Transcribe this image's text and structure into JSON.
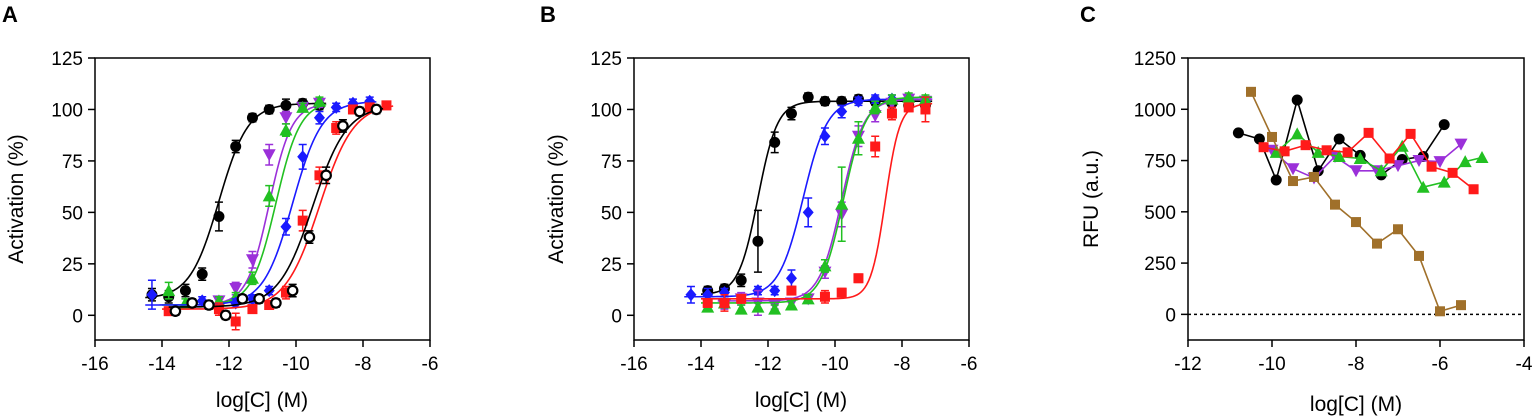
{
  "figure": {
    "panel_labels": [
      "A",
      "B",
      "C"
    ],
    "panel_A": {
      "xlabel": "log[C] (M)",
      "ylabel": "Activation (%)"
    },
    "panel_B": {
      "xlabel": "log[C] (M)",
      "ylabel": "Activation (%)"
    },
    "panel_C": {
      "xlabel": "log[C] (M)",
      "ylabel": "RFU (a.u.)"
    }
  },
  "chart_data": [
    {
      "panel": "A",
      "type": "scatter",
      "fit": "sigmoid",
      "xlabel": "log[C] (M)",
      "ylabel": "Activation (%)",
      "xlim": [
        -16,
        -6
      ],
      "ylim": [
        -12,
        125
      ],
      "xticks": [
        "-16",
        "-14",
        "-12",
        "-10",
        "-8",
        "-6"
      ],
      "xtick_values": [
        -16,
        -14,
        -12,
        -10,
        -8,
        -6
      ],
      "yticks": [
        "0",
        "25",
        "50",
        "75",
        "100",
        "125"
      ],
      "ytick_values": [
        0,
        25,
        50,
        75,
        100,
        125
      ],
      "grid": false,
      "series": [
        {
          "name": "black filled circle",
          "color": "#000000",
          "marker": "circle",
          "fit": {
            "bottom": 8,
            "top": 103,
            "ec50": -12.3,
            "hill": 1.0
          },
          "x": [
            -14.3,
            -13.8,
            -13.3,
            -12.8,
            -12.3,
            -11.8,
            -11.3,
            -10.8,
            -10.3,
            -9.8,
            -9.3
          ],
          "y": [
            10,
            9,
            12,
            20,
            48,
            82,
            96,
            100,
            102,
            103,
            102
          ],
          "err": [
            3,
            3,
            3,
            3,
            7,
            3,
            2,
            2,
            3,
            2,
            2
          ]
        },
        {
          "name": "magenta triangle",
          "color": "#9b30d9",
          "marker": "triangle-down",
          "fit": {
            "bottom": 5,
            "top": 103,
            "ec50": -10.8,
            "hill": 1.3
          },
          "x": [
            -12.3,
            -11.8,
            -11.3,
            -10.8,
            -10.3,
            -9.8,
            -9.3
          ],
          "y": [
            7,
            13,
            27,
            78,
            96,
            101,
            103
          ],
          "err": [
            2,
            3,
            4,
            5,
            3,
            2,
            2
          ]
        },
        {
          "name": "green triangle",
          "color": "#22c022",
          "marker": "triangle-up",
          "fit": {
            "bottom": 5,
            "top": 104,
            "ec50": -10.6,
            "hill": 1.2
          },
          "x": [
            -13.8,
            -13.3,
            -12.3,
            -11.8,
            -11.3,
            -10.8,
            -10.3,
            -9.8,
            -9.3
          ],
          "y": [
            12,
            6,
            7,
            9,
            18,
            58,
            90,
            101,
            104
          ],
          "err": [
            4,
            2,
            2,
            2,
            3,
            5,
            3,
            2,
            2
          ]
        },
        {
          "name": "blue diamond",
          "color": "#1a1aff",
          "marker": "diamond",
          "fit": {
            "bottom": 5,
            "top": 104,
            "ec50": -10.1,
            "hill": 1.0
          },
          "x": [
            -14.3,
            -12.8,
            -11.8,
            -11.3,
            -10.8,
            -10.3,
            -9.8,
            -9.3,
            -8.8,
            -8.3,
            -7.8
          ],
          "y": [
            10,
            7,
            6,
            8,
            12,
            43,
            77,
            96,
            101,
            103,
            104
          ],
          "err": [
            7,
            2,
            2,
            2,
            2,
            4,
            6,
            3,
            2,
            2,
            2
          ]
        },
        {
          "name": "red square",
          "color": "#ff1a1a",
          "marker": "square",
          "fit": {
            "bottom": 3,
            "top": 103,
            "ec50": -9.3,
            "hill": 0.85
          },
          "x": [
            -13.8,
            -12.3,
            -11.8,
            -11.3,
            -10.8,
            -10.3,
            -9.8,
            -9.3,
            -8.8,
            -8.3,
            -7.8,
            -7.3
          ],
          "y": [
            2,
            3,
            -3,
            3,
            5,
            11,
            46,
            68,
            91,
            100,
            101,
            102
          ],
          "err": [
            2,
            3,
            4,
            2,
            2,
            3,
            5,
            4,
            3,
            2,
            2,
            2
          ]
        },
        {
          "name": "black open circle",
          "color": "#000000",
          "marker": "open-circle",
          "fit": {
            "bottom": 4,
            "top": 102,
            "ec50": -9.5,
            "hill": 0.85
          },
          "x": [
            -13.6,
            -13.1,
            -12.6,
            -12.1,
            -11.6,
            -11.1,
            -10.6,
            -10.1,
            -9.6,
            -9.1,
            -8.6,
            -8.1,
            -7.6
          ],
          "y": [
            2,
            6,
            5,
            0,
            8,
            8,
            6,
            12,
            38,
            68,
            92,
            99,
            100
          ],
          "err": [
            2,
            2,
            2,
            2,
            2,
            2,
            2,
            3,
            3,
            4,
            3,
            2,
            2
          ]
        }
      ]
    },
    {
      "panel": "B",
      "type": "scatter",
      "fit": "sigmoid",
      "xlabel": "log[C] (M)",
      "ylabel": "Activation (%)",
      "xlim": [
        -16,
        -6
      ],
      "ylim": [
        -12,
        125
      ],
      "xticks": [
        "-16",
        "-14",
        "-12",
        "-10",
        "-8",
        "-6"
      ],
      "xtick_values": [
        -16,
        -14,
        -12,
        -10,
        -8,
        -6
      ],
      "yticks": [
        "0",
        "25",
        "50",
        "75",
        "100",
        "125"
      ],
      "ytick_values": [
        0,
        25,
        50,
        75,
        100,
        125
      ],
      "grid": false,
      "series": [
        {
          "name": "black filled circle",
          "color": "#000000",
          "marker": "circle",
          "fit": {
            "bottom": 10,
            "top": 104,
            "ec50": -12.3,
            "hill": 1.5
          },
          "x": [
            -13.8,
            -13.3,
            -12.8,
            -12.3,
            -11.8,
            -11.3,
            -10.8,
            -10.3,
            -9.8,
            -9.3,
            -8.8,
            -8.3,
            -7.8,
            -7.3
          ],
          "y": [
            12,
            13,
            17,
            36,
            84,
            98,
            106,
            104,
            104,
            105,
            104,
            103,
            102,
            102
          ],
          "err": [
            2,
            2,
            3,
            15,
            5,
            3,
            2,
            2,
            2,
            2,
            2,
            2,
            2,
            2
          ]
        },
        {
          "name": "blue diamond",
          "color": "#1a1aff",
          "marker": "diamond",
          "fit": {
            "bottom": 9,
            "top": 105,
            "ec50": -10.95,
            "hill": 1.2
          },
          "x": [
            -14.3,
            -13.8,
            -13.3,
            -12.3,
            -11.8,
            -11.3,
            -10.8,
            -10.3,
            -9.8,
            -9.3,
            -8.8,
            -8.3,
            -7.8,
            -7.3
          ],
          "y": [
            10,
            10,
            11,
            12,
            12,
            18,
            50,
            87,
            99,
            104,
            105,
            105,
            105,
            104
          ],
          "err": [
            4,
            3,
            2,
            2,
            2,
            4,
            7,
            4,
            3,
            2,
            2,
            2,
            2,
            2
          ]
        },
        {
          "name": "magenta triangle",
          "color": "#9b30d9",
          "marker": "triangle-down",
          "fit": {
            "bottom": 7,
            "top": 105,
            "ec50": -9.8,
            "hill": 1.3
          },
          "x": [
            -13.3,
            -12.8,
            -12.3,
            -11.8,
            -11.3,
            -10.8,
            -10.3,
            -9.8,
            -9.3,
            -8.8,
            -8.3,
            -7.8,
            -7.3
          ],
          "y": [
            5,
            8,
            6,
            5,
            6,
            8,
            21,
            49,
            87,
            97,
            103,
            105,
            104
          ],
          "err": [
            2,
            3,
            6,
            2,
            2,
            2,
            3,
            6,
            5,
            3,
            2,
            2,
            2
          ]
        },
        {
          "name": "green triangle",
          "color": "#22c022",
          "marker": "triangle-up",
          "fit": {
            "bottom": 6,
            "top": 106,
            "ec50": -9.75,
            "hill": 1.3
          },
          "x": [
            -13.8,
            -13.3,
            -12.8,
            -12.3,
            -11.8,
            -11.3,
            -10.8,
            -10.3,
            -9.8,
            -9.3,
            -8.8,
            -8.3,
            -7.8,
            -7.3
          ],
          "y": [
            4,
            6,
            3,
            4,
            3,
            5,
            8,
            24,
            54,
            86,
            101,
            105,
            106,
            105
          ],
          "err": [
            2,
            2,
            2,
            2,
            2,
            2,
            2,
            3,
            18,
            8,
            3,
            2,
            2,
            2
          ]
        },
        {
          "name": "red square",
          "color": "#ff1a1a",
          "marker": "square",
          "fit": {
            "bottom": 8,
            "top": 103,
            "ec50": -8.5,
            "hill": 2.0
          },
          "x": [
            -13.8,
            -13.3,
            -12.8,
            -11.3,
            -10.3,
            -9.8,
            -9.3,
            -8.8,
            -8.3,
            -7.8,
            -7.3
          ],
          "y": [
            6,
            6,
            8,
            12,
            9,
            11,
            18,
            82,
            98,
            101,
            100
          ],
          "err": [
            2,
            4,
            2,
            2,
            3,
            2,
            2,
            5,
            3,
            2,
            6
          ]
        }
      ]
    },
    {
      "panel": "C",
      "type": "line",
      "xlabel": "log[C] (M)",
      "ylabel": "RFU (a.u.)",
      "xlim": [
        -12,
        -4
      ],
      "ylim": [
        -125,
        1250
      ],
      "xticks": [
        "-12",
        "-10",
        "-8",
        "-6",
        "-4"
      ],
      "xtick_values": [
        -12,
        -10,
        -8,
        -6,
        -4
      ],
      "yticks": [
        "0",
        "250",
        "500",
        "750",
        "1000",
        "1250"
      ],
      "ytick_values": [
        0,
        250,
        500,
        750,
        1000,
        1250
      ],
      "grid": false,
      "reference_line": {
        "y": 0,
        "style": "dotted"
      },
      "series": [
        {
          "name": "black circle",
          "color": "#000000",
          "marker": "circle",
          "x": [
            -10.8,
            -10.3,
            -9.9,
            -9.4,
            -8.9,
            -8.4,
            -7.9,
            -7.4,
            -6.9,
            -6.4,
            -5.9
          ],
          "y": [
            885,
            855,
            655,
            1045,
            700,
            855,
            775,
            680,
            755,
            770,
            925
          ]
        },
        {
          "name": "magenta triangle",
          "color": "#9b30d9",
          "marker": "triangle-down",
          "x": [
            -10.0,
            -9.5,
            -9.0,
            -8.5,
            -8.0,
            -7.5,
            -7.0,
            -6.5,
            -6.0,
            -5.5
          ],
          "y": [
            800,
            710,
            665,
            770,
            700,
            700,
            725,
            750,
            745,
            830
          ]
        },
        {
          "name": "green triangle",
          "color": "#22c022",
          "marker": "triangle-up",
          "x": [
            -9.9,
            -9.4,
            -8.9,
            -8.4,
            -7.9,
            -7.4,
            -6.9,
            -6.4,
            -5.9,
            -5.4,
            -5.0
          ],
          "y": [
            790,
            880,
            790,
            770,
            760,
            700,
            820,
            620,
            645,
            745,
            765
          ]
        },
        {
          "name": "red square",
          "color": "#ff1a1a",
          "marker": "square",
          "x": [
            -10.2,
            -9.7,
            -9.2,
            -8.7,
            -8.2,
            -7.7,
            -7.2,
            -6.7,
            -6.2,
            -5.7,
            -5.2
          ],
          "y": [
            815,
            795,
            825,
            800,
            790,
            885,
            760,
            880,
            720,
            690,
            610
          ]
        },
        {
          "name": "brown square",
          "color": "#a0702a",
          "marker": "square",
          "x": [
            -10.5,
            -10.0,
            -9.5,
            -9.0,
            -8.5,
            -8.0,
            -7.5,
            -7.0,
            -6.5,
            -6.0,
            -5.5
          ],
          "y": [
            1085,
            865,
            650,
            670,
            535,
            450,
            345,
            415,
            285,
            15,
            45
          ]
        }
      ]
    }
  ]
}
